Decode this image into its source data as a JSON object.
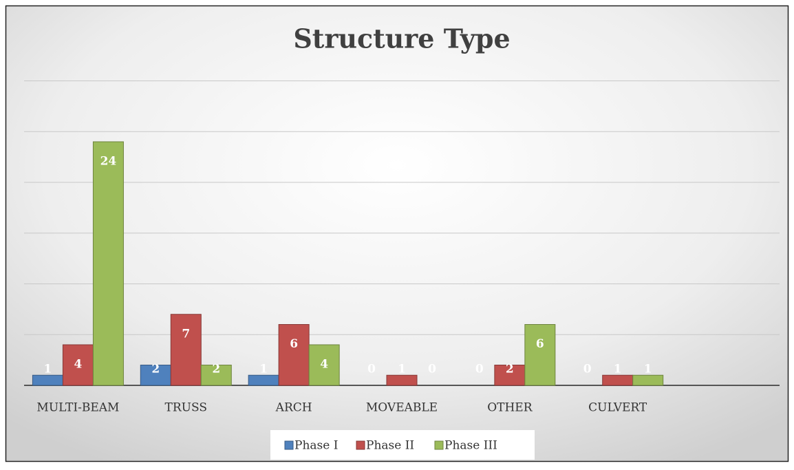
{
  "chart_data": {
    "type": "bar",
    "title": "Structure Type",
    "categories": [
      "MULTI-BEAM",
      "TRUSS",
      "ARCH",
      "MOVEABLE",
      "OTHER",
      "CULVERT",
      null
    ],
    "series": [
      {
        "name": "Phase I",
        "color": "#4f81bd",
        "values": [
          1,
          2,
          1,
          0,
          0,
          0,
          null
        ]
      },
      {
        "name": "Phase II",
        "color": "#c0504d",
        "values": [
          4,
          7,
          6,
          1,
          2,
          1,
          null
        ]
      },
      {
        "name": "Phase III",
        "color": "#9bbb59",
        "values": [
          24,
          2,
          4,
          0,
          6,
          1,
          null
        ]
      }
    ],
    "ylim": [
      0,
      30
    ],
    "yticks": [
      0,
      5,
      10,
      15,
      20,
      25,
      30
    ],
    "grid": true,
    "legend": "bottom"
  }
}
